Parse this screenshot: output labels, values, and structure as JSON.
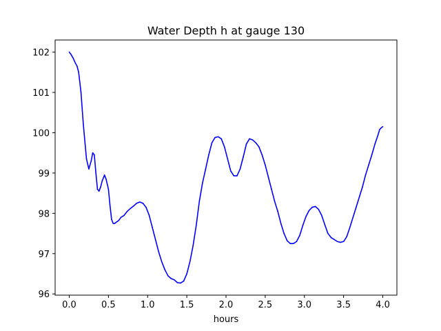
{
  "chart_data": {
    "type": "line",
    "title": "Water Depth h at gauge 130",
    "xlabel": "hours",
    "ylabel": "",
    "xlim": [
      -0.18,
      4.18
    ],
    "ylim": [
      95.97,
      102.3
    ],
    "xticks": [
      0.0,
      0.5,
      1.0,
      1.5,
      2.0,
      2.5,
      3.0,
      3.5,
      4.0
    ],
    "xtick_labels": [
      "0.0",
      "0.5",
      "1.0",
      "1.5",
      "2.0",
      "2.5",
      "3.0",
      "3.5",
      "4.0"
    ],
    "yticks": [
      96,
      97,
      98,
      99,
      100,
      101,
      102
    ],
    "ytick_labels": [
      "96",
      "97",
      "98",
      "99",
      "100",
      "101",
      "102"
    ],
    "grid": false,
    "series": [
      {
        "color": "#0000ff",
        "x": [
          0.0,
          0.02,
          0.05,
          0.08,
          0.1,
          0.12,
          0.15,
          0.18,
          0.22,
          0.25,
          0.28,
          0.3,
          0.32,
          0.34,
          0.36,
          0.38,
          0.4,
          0.42,
          0.45,
          0.47,
          0.5,
          0.52,
          0.54,
          0.56,
          0.58,
          0.6,
          0.63,
          0.66,
          0.7,
          0.74,
          0.78,
          0.82,
          0.86,
          0.9,
          0.94,
          0.98,
          1.02,
          1.06,
          1.1,
          1.14,
          1.18,
          1.22,
          1.26,
          1.3,
          1.34,
          1.38,
          1.42,
          1.46,
          1.5,
          1.54,
          1.58,
          1.62,
          1.66,
          1.7,
          1.74,
          1.78,
          1.82,
          1.86,
          1.9,
          1.94,
          1.98,
          2.02,
          2.06,
          2.1,
          2.14,
          2.18,
          2.22,
          2.26,
          2.3,
          2.34,
          2.38,
          2.42,
          2.46,
          2.5,
          2.54,
          2.58,
          2.62,
          2.66,
          2.7,
          2.74,
          2.78,
          2.82,
          2.86,
          2.9,
          2.94,
          2.98,
          3.02,
          3.06,
          3.1,
          3.14,
          3.18,
          3.22,
          3.26,
          3.3,
          3.34,
          3.38,
          3.42,
          3.46,
          3.5,
          3.54,
          3.58,
          3.62,
          3.66,
          3.7,
          3.74,
          3.78,
          3.82,
          3.86,
          3.9,
          3.94,
          3.96,
          3.98,
          4.0
        ],
        "values": [
          102.0,
          101.95,
          101.85,
          101.72,
          101.65,
          101.5,
          101.0,
          100.2,
          99.35,
          99.1,
          99.3,
          99.5,
          99.45,
          99.0,
          98.6,
          98.55,
          98.65,
          98.8,
          98.95,
          98.85,
          98.6,
          98.2,
          97.85,
          97.75,
          97.75,
          97.78,
          97.82,
          97.9,
          97.95,
          98.05,
          98.12,
          98.18,
          98.25,
          98.28,
          98.25,
          98.15,
          97.95,
          97.65,
          97.35,
          97.05,
          96.8,
          96.6,
          96.45,
          96.38,
          96.35,
          96.28,
          96.27,
          96.32,
          96.5,
          96.8,
          97.2,
          97.7,
          98.3,
          98.75,
          99.1,
          99.45,
          99.75,
          99.88,
          99.9,
          99.85,
          99.65,
          99.35,
          99.05,
          98.93,
          98.93,
          99.1,
          99.4,
          99.72,
          99.85,
          99.82,
          99.75,
          99.65,
          99.45,
          99.2,
          98.9,
          98.6,
          98.3,
          98.05,
          97.75,
          97.5,
          97.32,
          97.25,
          97.25,
          97.3,
          97.45,
          97.7,
          97.92,
          98.07,
          98.15,
          98.17,
          98.1,
          97.95,
          97.72,
          97.5,
          97.4,
          97.35,
          97.3,
          97.28,
          97.3,
          97.42,
          97.65,
          97.9,
          98.15,
          98.4,
          98.65,
          98.95,
          99.2,
          99.45,
          99.72,
          99.95,
          100.08,
          100.12,
          100.15
        ]
      }
    ]
  }
}
